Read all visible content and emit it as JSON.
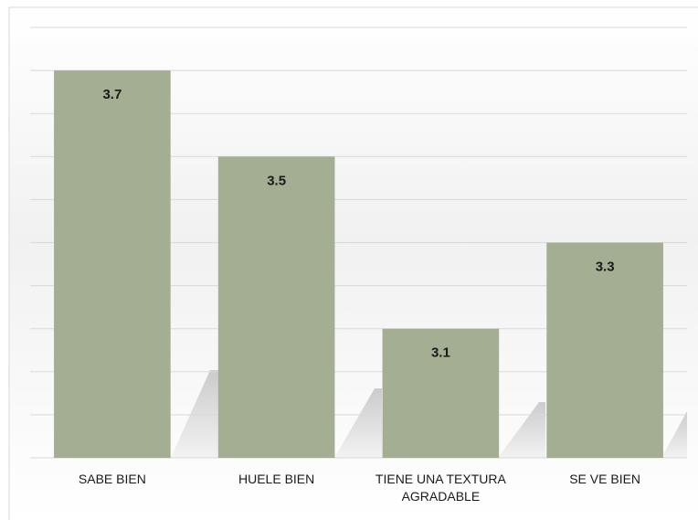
{
  "chart_data": {
    "type": "bar",
    "categories": [
      "SABE BIEN",
      "HUELE BIEN",
      "TIENE UNA TEXTURA AGRADABLE",
      "SE VE BIEN"
    ],
    "values": [
      3.7,
      3.5,
      3.1,
      3.3
    ],
    "color": "#a3ae92",
    "ylim": [
      2.8,
      3.8
    ],
    "yticks": [
      2.8,
      2.9,
      3.0,
      3.1,
      3.2,
      3.3,
      3.4,
      3.5,
      3.6,
      3.7,
      3.8
    ],
    "grid": true
  }
}
